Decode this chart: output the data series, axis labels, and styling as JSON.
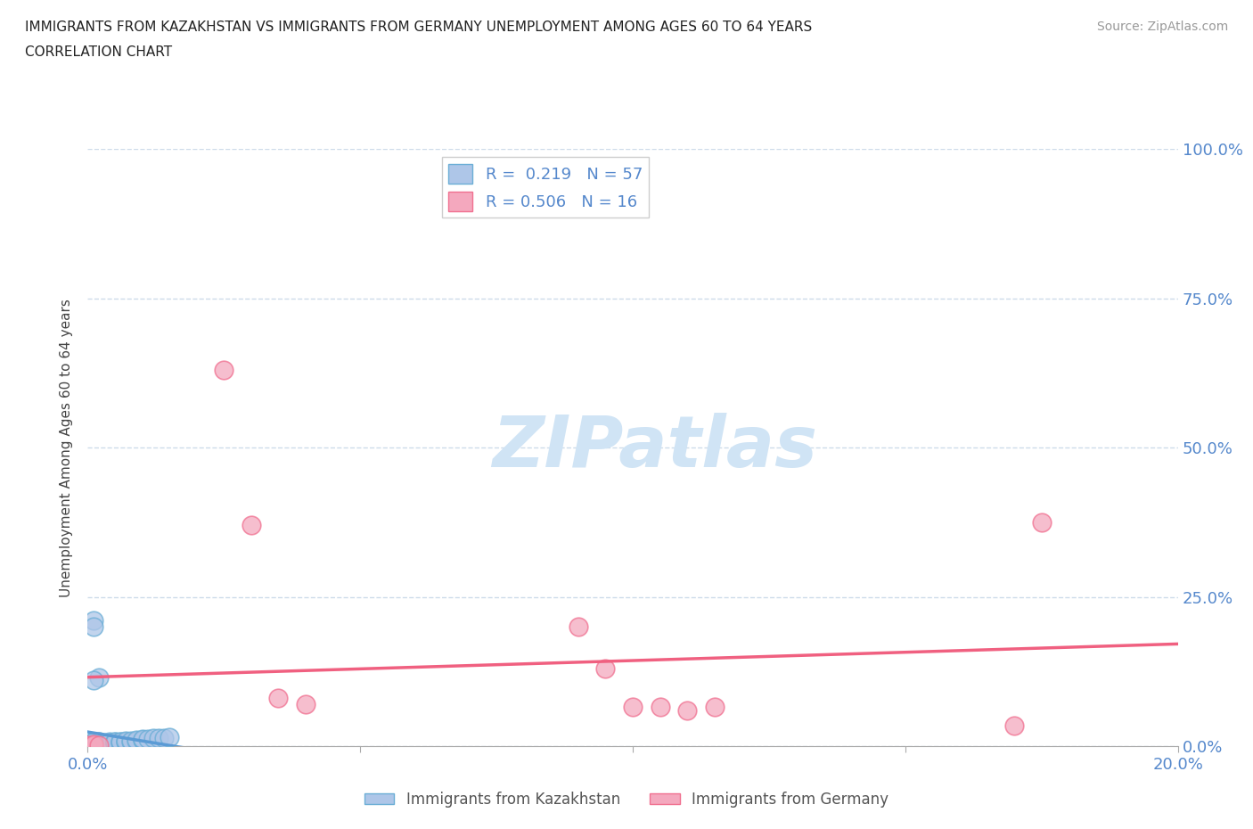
{
  "title_line1": "IMMIGRANTS FROM KAZAKHSTAN VS IMMIGRANTS FROM GERMANY UNEMPLOYMENT AMONG AGES 60 TO 64 YEARS",
  "title_line2": "CORRELATION CHART",
  "source": "Source: ZipAtlas.com",
  "ylabel": "Unemployment Among Ages 60 to 64 years",
  "xlim": [
    0.0,
    0.2
  ],
  "ylim": [
    0.0,
    1.0
  ],
  "kazakhstan_R": 0.219,
  "kazakhstan_N": 57,
  "germany_R": 0.506,
  "germany_N": 16,
  "kazakhstan_color": "#aec6e8",
  "germany_color": "#f4a8be",
  "kazakhstan_edge_color": "#6baed6",
  "germany_edge_color": "#f07090",
  "kazakhstan_line_color": "#5b9bd5",
  "germany_line_color": "#f06080",
  "watermark_text": "ZIPatlas",
  "watermark_color": "#d0e4f5",
  "kazakhstan_x": [
    0.0,
    0.0,
    0.0,
    0.001,
    0.001,
    0.001,
    0.001,
    0.001,
    0.001,
    0.001,
    0.001,
    0.001,
    0.001,
    0.001,
    0.001,
    0.002,
    0.002,
    0.002,
    0.002,
    0.002,
    0.002,
    0.002,
    0.003,
    0.003,
    0.003,
    0.003,
    0.004,
    0.004,
    0.004,
    0.004,
    0.005,
    0.005,
    0.005,
    0.005,
    0.006,
    0.006,
    0.006,
    0.007,
    0.007,
    0.007,
    0.008,
    0.008,
    0.009,
    0.009,
    0.01,
    0.01,
    0.01,
    0.011,
    0.012,
    0.013,
    0.014,
    0.015,
    0.001,
    0.001,
    0.002,
    0.001,
    0.001
  ],
  "kazakhstan_y": [
    0.001,
    0.002,
    0.003,
    0.001,
    0.002,
    0.003,
    0.004,
    0.005,
    0.006,
    0.007,
    0.008,
    0.002,
    0.003,
    0.004,
    0.005,
    0.002,
    0.003,
    0.004,
    0.005,
    0.006,
    0.007,
    0.008,
    0.003,
    0.004,
    0.005,
    0.006,
    0.004,
    0.005,
    0.006,
    0.007,
    0.005,
    0.006,
    0.007,
    0.008,
    0.006,
    0.007,
    0.008,
    0.007,
    0.008,
    0.009,
    0.008,
    0.009,
    0.009,
    0.01,
    0.01,
    0.011,
    0.012,
    0.012,
    0.013,
    0.013,
    0.014,
    0.015,
    0.21,
    0.2,
    0.115,
    0.11,
    0.008
  ],
  "germany_x": [
    0.0,
    0.001,
    0.001,
    0.002,
    0.025,
    0.03,
    0.035,
    0.04,
    0.09,
    0.095,
    0.1,
    0.105,
    0.11,
    0.115,
    0.17,
    0.175
  ],
  "germany_y": [
    0.001,
    0.002,
    0.003,
    0.001,
    0.63,
    0.37,
    0.08,
    0.07,
    0.2,
    0.13,
    0.065,
    0.065,
    0.06,
    0.065,
    0.035,
    0.375
  ]
}
